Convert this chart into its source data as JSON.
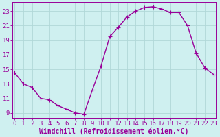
{
  "x": [
    0,
    1,
    2,
    3,
    4,
    5,
    6,
    7,
    8,
    9,
    10,
    11,
    12,
    13,
    14,
    15,
    16,
    17,
    18,
    19,
    20,
    21,
    22,
    23
  ],
  "y": [
    14.5,
    13.0,
    12.5,
    11.0,
    10.8,
    10.0,
    9.5,
    9.0,
    8.8,
    12.2,
    15.5,
    19.5,
    20.8,
    22.2,
    23.0,
    23.5,
    23.6,
    23.3,
    22.8,
    22.8,
    21.0,
    17.2,
    15.2,
    14.3
  ],
  "line_color": "#990099",
  "marker": "D",
  "marker_size": 2.0,
  "bg_color": "#cff0f0",
  "grid_color": "#b0d8d8",
  "xlabel": "Windchill (Refroidissement éolien,°C)",
  "tick_color": "#990099",
  "yticks": [
    9,
    11,
    13,
    15,
    17,
    19,
    21,
    23
  ],
  "xticks": [
    0,
    1,
    2,
    3,
    4,
    5,
    6,
    7,
    8,
    9,
    10,
    11,
    12,
    13,
    14,
    15,
    16,
    17,
    18,
    19,
    20,
    21,
    22,
    23
  ],
  "xlim": [
    -0.3,
    23.3
  ],
  "ylim": [
    8.3,
    24.2
  ],
  "linewidth": 1.0,
  "font_size": 6.5,
  "xlabel_fontsize": 7.0
}
